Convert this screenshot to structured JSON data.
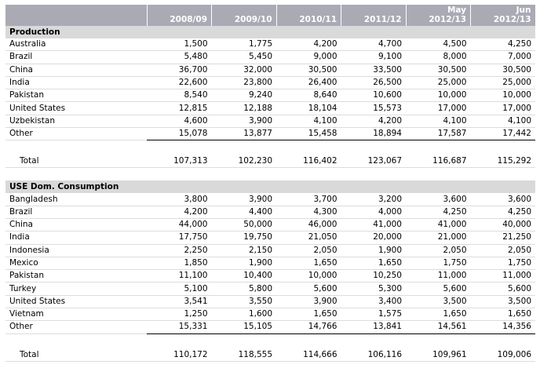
{
  "header": {
    "columns": [
      {
        "line1": "",
        "line2": "2008/09"
      },
      {
        "line1": "",
        "line2": "2009/10"
      },
      {
        "line1": "",
        "line2": "2010/11"
      },
      {
        "line1": "",
        "line2": "2011/12"
      },
      {
        "line1": "May",
        "line2": "2012/13"
      },
      {
        "line1": "Jun",
        "line2": "2012/13"
      }
    ]
  },
  "production": {
    "title": "Production",
    "rows": [
      {
        "label": "Australia",
        "values": [
          "1,500",
          "1,775",
          "4,200",
          "4,700",
          "4,500",
          "4,250"
        ]
      },
      {
        "label": "Brazil",
        "values": [
          "5,480",
          "5,450",
          "9,000",
          "9,100",
          "8,000",
          "7,000"
        ]
      },
      {
        "label": "China",
        "values": [
          "36,700",
          "32,000",
          "30,500",
          "33,500",
          "30,500",
          "30,500"
        ]
      },
      {
        "label": "India",
        "values": [
          "22,600",
          "23,800",
          "26,400",
          "26,500",
          "25,000",
          "25,000"
        ]
      },
      {
        "label": "Pakistan",
        "values": [
          "8,540",
          "9,240",
          "8,640",
          "10,600",
          "10,000",
          "10,000"
        ]
      },
      {
        "label": "United States",
        "values": [
          "12,815",
          "12,188",
          "18,104",
          "15,573",
          "17,000",
          "17,000"
        ]
      },
      {
        "label": "Uzbekistan",
        "values": [
          "4,600",
          "3,900",
          "4,100",
          "4,200",
          "4,100",
          "4,100"
        ]
      },
      {
        "label": "Other",
        "values": [
          "15,078",
          "13,877",
          "15,458",
          "18,894",
          "17,587",
          "17,442"
        ]
      }
    ],
    "total": {
      "label": "Total",
      "values": [
        "107,313",
        "102,230",
        "116,402",
        "123,067",
        "116,687",
        "115,292"
      ]
    }
  },
  "consumption": {
    "title": "USE Dom. Consumption",
    "rows": [
      {
        "label": "Bangladesh",
        "values": [
          "3,800",
          "3,900",
          "3,700",
          "3,200",
          "3,600",
          "3,600"
        ]
      },
      {
        "label": "Brazil",
        "values": [
          "4,200",
          "4,400",
          "4,300",
          "4,000",
          "4,250",
          "4,250"
        ]
      },
      {
        "label": "China",
        "values": [
          "44,000",
          "50,000",
          "46,000",
          "41,000",
          "41,000",
          "40,000"
        ]
      },
      {
        "label": "India",
        "values": [
          "17,750",
          "19,750",
          "21,050",
          "20,000",
          "21,000",
          "21,250"
        ]
      },
      {
        "label": "Indonesia",
        "values": [
          "2,250",
          "2,150",
          "2,050",
          "1,900",
          "2,050",
          "2,050"
        ]
      },
      {
        "label": "Mexico",
        "values": [
          "1,850",
          "1,900",
          "1,650",
          "1,650",
          "1,750",
          "1,750"
        ]
      },
      {
        "label": "Pakistan",
        "values": [
          "11,100",
          "10,400",
          "10,000",
          "10,250",
          "11,000",
          "11,000"
        ]
      },
      {
        "label": "Turkey",
        "values": [
          "5,100",
          "5,800",
          "5,600",
          "5,300",
          "5,600",
          "5,600"
        ]
      },
      {
        "label": "United States",
        "values": [
          "3,541",
          "3,550",
          "3,900",
          "3,400",
          "3,500",
          "3,500"
        ]
      },
      {
        "label": "Vietnam",
        "values": [
          "1,250",
          "1,600",
          "1,650",
          "1,575",
          "1,650",
          "1,650"
        ]
      },
      {
        "label": "Other",
        "values": [
          "15,331",
          "15,105",
          "14,766",
          "13,841",
          "14,561",
          "14,356"
        ]
      }
    ],
    "total": {
      "label": "Total",
      "values": [
        "110,172",
        "118,555",
        "114,666",
        "106,116",
        "109,961",
        "109,006"
      ]
    }
  }
}
